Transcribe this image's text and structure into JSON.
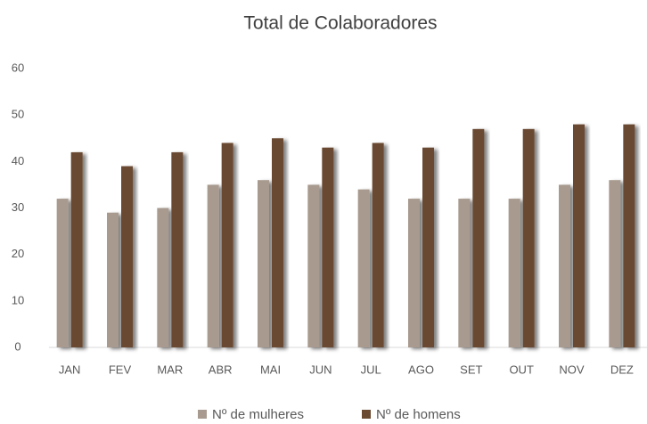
{
  "chart_data": {
    "type": "bar",
    "title": "Total de Colaboradores",
    "categories": [
      "JAN",
      "FEV",
      "MAR",
      "ABR",
      "MAI",
      "JUN",
      "JUL",
      "AGO",
      "SET",
      "OUT",
      "NOV",
      "DEZ"
    ],
    "series": [
      {
        "name": "Nº de mulheres",
        "color": "#a89a8e",
        "values": [
          32,
          29,
          30,
          35,
          36,
          35,
          34,
          32,
          32,
          32,
          35,
          36
        ]
      },
      {
        "name": "Nº de homens",
        "color": "#6b4a32",
        "values": [
          42,
          39,
          42,
          44,
          45,
          43,
          44,
          43,
          47,
          47,
          48,
          48
        ]
      }
    ],
    "ylim": [
      0,
      60
    ],
    "yticks": [
      0,
      10,
      20,
      30,
      40,
      50,
      60
    ],
    "grid": false
  }
}
